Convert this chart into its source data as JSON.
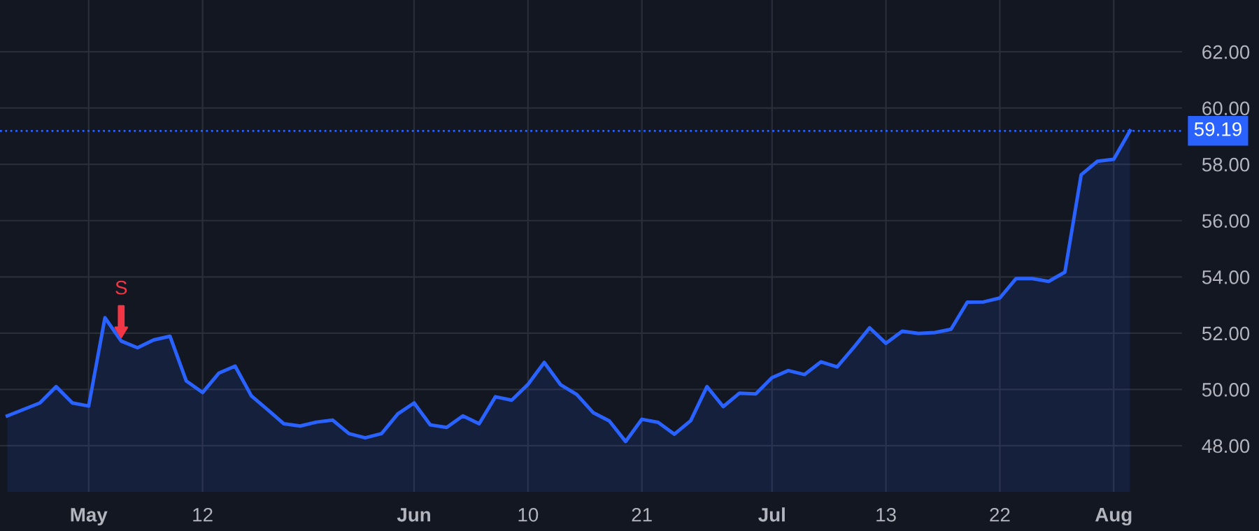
{
  "chart_data": {
    "type": "area",
    "categories": [
      null,
      null,
      null,
      null,
      null,
      "May",
      null,
      null,
      null,
      null,
      null,
      null,
      "12",
      null,
      null,
      null,
      null,
      null,
      null,
      null,
      null,
      null,
      null,
      null,
      null,
      "Jun",
      null,
      null,
      null,
      null,
      null,
      null,
      "10",
      null,
      null,
      null,
      null,
      null,
      null,
      "21",
      null,
      null,
      null,
      null,
      null,
      null,
      null,
      "Jul",
      null,
      null,
      null,
      null,
      null,
      null,
      "13",
      null,
      null,
      null,
      null,
      null,
      null,
      "22",
      null,
      null,
      null,
      null,
      null,
      null,
      "Aug",
      null
    ],
    "series": [
      {
        "color": "#2962ff",
        "values": [
          49.06,
          49.29,
          49.52,
          50.1,
          49.52,
          49.41,
          52.55,
          51.72,
          51.48,
          51.76,
          51.89,
          50.3,
          49.89,
          50.58,
          50.83,
          49.77,
          49.28,
          48.78,
          48.7,
          48.84,
          48.91,
          48.43,
          48.28,
          48.43,
          49.13,
          49.52,
          48.74,
          48.65,
          49.06,
          48.78,
          49.74,
          49.62,
          50.18,
          50.96,
          50.17,
          49.82,
          49.18,
          48.88,
          48.15,
          48.94,
          48.83,
          48.41,
          48.89,
          50.1,
          49.39,
          49.87,
          49.84,
          50.42,
          50.67,
          50.53,
          50.98,
          50.8,
          51.48,
          52.19,
          51.64,
          52.07,
          51.99,
          52.02,
          52.14,
          53.1,
          53.11,
          53.25,
          53.94,
          53.94,
          53.84,
          54.17,
          57.63,
          58.11,
          58.18,
          59.19
        ]
      }
    ],
    "ylim": [
      46.36,
      63.84
    ],
    "yticks": [
      {
        "value": 48,
        "label": "48.00"
      },
      {
        "value": 50,
        "label": "50.00"
      },
      {
        "value": 52,
        "label": "52.00"
      },
      {
        "value": 54,
        "label": "54.00"
      },
      {
        "value": 56,
        "label": "56.00"
      },
      {
        "value": 58,
        "label": "58.00"
      },
      {
        "value": 60,
        "label": "60.00"
      },
      {
        "value": 62,
        "label": "62.00"
      }
    ],
    "ref_lines": [
      {
        "axis": "y",
        "value": 59.19,
        "label": "59.19",
        "color": "#2962ff",
        "line_style": "dotted"
      }
    ],
    "annotations": [
      {
        "text": "S",
        "y": 51.72
      }
    ],
    "grid": true
  }
}
